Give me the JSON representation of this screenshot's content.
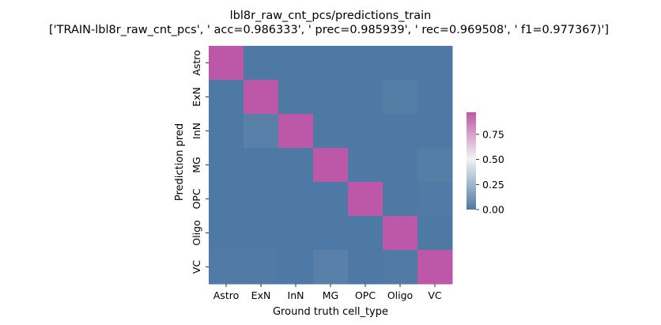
{
  "chart_data": {
    "type": "heatmap",
    "title": "lbl8r_raw_cnt_pcs/predictions_train",
    "subtitle": "['TRAIN-lbl8r_raw_cnt_pcs', ' acc=0.986333', '  prec=0.985939', ' rec=0.969508', ' f1=0.977367)']",
    "xlabel": "Ground truth cell_type",
    "ylabel": "Prediction pred",
    "x_categories": [
      "Astro",
      "ExN",
      "InN",
      "MG",
      "OPC",
      "Oligo",
      "VC"
    ],
    "y_categories": [
      "Astro",
      "ExN",
      "InN",
      "MG",
      "OPC",
      "Oligo",
      "VC"
    ],
    "values": [
      [
        0.99,
        0.0,
        0.0,
        0.0,
        0.0,
        0.0,
        0.0
      ],
      [
        0.0,
        0.98,
        0.0,
        0.0,
        0.0,
        0.02,
        0.0
      ],
      [
        0.0,
        0.03,
        0.97,
        0.0,
        0.0,
        0.0,
        0.0
      ],
      [
        0.0,
        0.0,
        0.0,
        0.99,
        0.0,
        0.0,
        0.02
      ],
      [
        0.0,
        0.0,
        0.0,
        0.0,
        0.99,
        0.0,
        0.01
      ],
      [
        0.0,
        0.0,
        0.0,
        0.0,
        0.0,
        0.97,
        0.0
      ],
      [
        0.01,
        0.01,
        0.0,
        0.03,
        0.0,
        0.01,
        0.97
      ]
    ],
    "colorbar": {
      "range": [
        0,
        0.97
      ],
      "ticks": [
        "0.00",
        "0.25",
        "0.50",
        "0.75"
      ],
      "tick_values": [
        0,
        0.25,
        0.5,
        0.75
      ]
    },
    "colors": {
      "low": "#4e79a4",
      "mid": "#f2f2f2",
      "high": "#bd58a8"
    },
    "grid": false,
    "legend": "colorbar right"
  }
}
